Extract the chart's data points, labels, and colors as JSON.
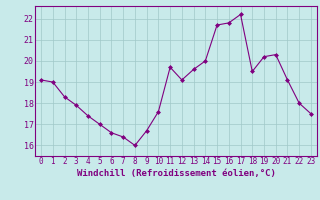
{
  "x": [
    0,
    1,
    2,
    3,
    4,
    5,
    6,
    7,
    8,
    9,
    10,
    11,
    12,
    13,
    14,
    15,
    16,
    17,
    18,
    19,
    20,
    21,
    22,
    23
  ],
  "y": [
    19.1,
    19.0,
    18.3,
    17.9,
    17.4,
    17.0,
    16.6,
    16.4,
    16.0,
    16.7,
    17.6,
    19.7,
    19.1,
    19.6,
    20.0,
    21.7,
    21.8,
    22.2,
    19.5,
    20.2,
    20.3,
    19.1,
    18.0,
    17.5
  ],
  "line_color": "#800080",
  "marker": "D",
  "marker_size": 2.0,
  "bg_color": "#c8eaea",
  "grid_color": "#a0c8c8",
  "xlabel": "Windchill (Refroidissement éolien,°C)",
  "xlabel_color": "#800080",
  "tick_color": "#800080",
  "ylim": [
    15.5,
    22.6
  ],
  "xlim": [
    -0.5,
    23.5
  ],
  "yticks": [
    16,
    17,
    18,
    19,
    20,
    21,
    22
  ],
  "xticks": [
    0,
    1,
    2,
    3,
    4,
    5,
    6,
    7,
    8,
    9,
    10,
    11,
    12,
    13,
    14,
    15,
    16,
    17,
    18,
    19,
    20,
    21,
    22,
    23
  ],
  "tick_fontsize": 5.5,
  "xlabel_fontsize": 6.5,
  "linewidth": 0.8
}
